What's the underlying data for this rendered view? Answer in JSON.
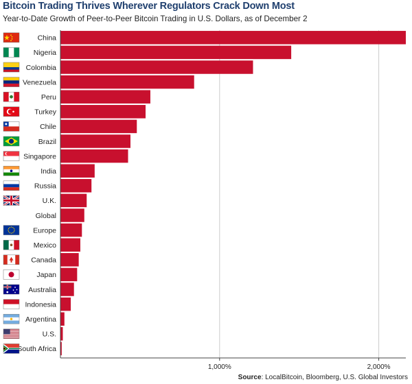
{
  "header": {
    "title": "Bitcoin Trading Thrives Wherever Regulators Crack Down Most",
    "subtitle": "Year-to-Date Growth of Peer-to-Peer Bitcoin Trading in U.S. Dollars, as of December 2"
  },
  "footer": {
    "source_label": "Source",
    "source_text": ": LocalBitcoin, Bloomberg, U.S. Global Investors"
  },
  "colors": {
    "bar": "#c8102e",
    "title": "#1f3f6e"
  },
  "chart_data": {
    "type": "bar",
    "orientation": "horizontal",
    "categories": [
      "China",
      "Nigeria",
      "Colombia",
      "Venezuela",
      "Peru",
      "Turkey",
      "Chile",
      "Brazil",
      "Singapore",
      "India",
      "Russia",
      "U.K.",
      "Global",
      "Europe",
      "Mexico",
      "Canada",
      "Japan",
      "Australia",
      "Indonesia",
      "Argentina",
      "U.S.",
      "South Africa"
    ],
    "values": [
      2170,
      1450,
      1210,
      840,
      565,
      535,
      480,
      440,
      425,
      215,
      195,
      165,
      150,
      135,
      125,
      115,
      105,
      85,
      65,
      25,
      15,
      8
    ],
    "unit": "%",
    "xlim": [
      0,
      2170
    ],
    "xticks": [
      1000,
      2000
    ],
    "xtick_labels": [
      "1,000%",
      "2,000%"
    ],
    "flags": [
      "china-flag-icon",
      "nigeria-flag-icon",
      "colombia-flag-icon",
      "venezuela-flag-icon",
      "peru-flag-icon",
      "turkey-flag-icon",
      "chile-flag-icon",
      "brazil-flag-icon",
      "singapore-flag-icon",
      "india-flag-icon",
      "russia-flag-icon",
      "uk-flag-icon",
      "",
      "europe-flag-icon",
      "mexico-flag-icon",
      "canada-flag-icon",
      "japan-flag-icon",
      "australia-flag-icon",
      "indonesia-flag-icon",
      "argentina-flag-icon",
      "us-flag-icon",
      "south-africa-flag-icon"
    ],
    "grid": true,
    "legend": "none"
  }
}
